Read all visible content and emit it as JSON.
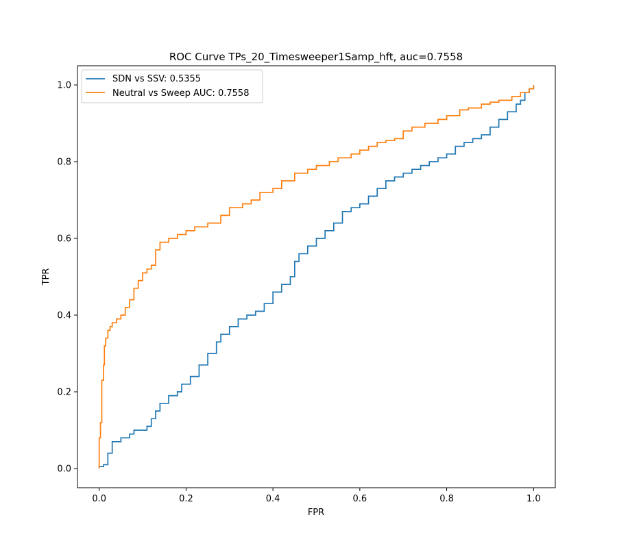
{
  "chart_data": {
    "type": "line",
    "title": "ROC Curve TPs_20_Timesweeper1Samp_hft, auc=0.7558",
    "xlabel": "FPR",
    "ylabel": "TPR",
    "xlim": [
      -0.05,
      1.05
    ],
    "ylim": [
      -0.05,
      1.05
    ],
    "xticks": [
      0.0,
      0.2,
      0.4,
      0.6,
      0.8,
      1.0
    ],
    "yticks": [
      0.0,
      0.2,
      0.4,
      0.6,
      0.8,
      1.0
    ],
    "x_tick_labels": [
      "0.0",
      "0.2",
      "0.4",
      "0.6",
      "0.8",
      "1.0"
    ],
    "y_tick_labels": [
      "0.0",
      "0.2",
      "0.4",
      "0.6",
      "0.8",
      "1.0"
    ],
    "grid": false,
    "legend_position": "upper-left",
    "series": [
      {
        "name": "SDN vs SSV: 0.5355",
        "color": "#1f77b4",
        "x": [
          0.0,
          0.0,
          0.01,
          0.02,
          0.03,
          0.05,
          0.07,
          0.08,
          0.1,
          0.11,
          0.12,
          0.13,
          0.14,
          0.16,
          0.18,
          0.19,
          0.21,
          0.23,
          0.25,
          0.27,
          0.28,
          0.3,
          0.32,
          0.34,
          0.36,
          0.38,
          0.4,
          0.42,
          0.44,
          0.45,
          0.46,
          0.48,
          0.5,
          0.52,
          0.54,
          0.56,
          0.58,
          0.6,
          0.62,
          0.64,
          0.66,
          0.68,
          0.7,
          0.72,
          0.74,
          0.76,
          0.78,
          0.8,
          0.82,
          0.84,
          0.86,
          0.88,
          0.9,
          0.92,
          0.94,
          0.96,
          0.97,
          0.98,
          0.99,
          1.0
        ],
        "y": [
          0.0,
          0.005,
          0.01,
          0.04,
          0.07,
          0.08,
          0.09,
          0.1,
          0.1,
          0.11,
          0.13,
          0.15,
          0.17,
          0.19,
          0.2,
          0.22,
          0.24,
          0.27,
          0.3,
          0.33,
          0.35,
          0.37,
          0.39,
          0.4,
          0.41,
          0.43,
          0.46,
          0.48,
          0.5,
          0.54,
          0.56,
          0.58,
          0.6,
          0.62,
          0.64,
          0.67,
          0.68,
          0.69,
          0.71,
          0.73,
          0.75,
          0.76,
          0.77,
          0.78,
          0.79,
          0.8,
          0.81,
          0.82,
          0.84,
          0.85,
          0.86,
          0.87,
          0.89,
          0.91,
          0.93,
          0.95,
          0.96,
          0.98,
          0.99,
          1.0
        ]
      },
      {
        "name": "Neutral vs Sweep AUC: 0.7558",
        "color": "#ff7f0e",
        "x": [
          0.0,
          0.0,
          0.003,
          0.006,
          0.01,
          0.012,
          0.015,
          0.02,
          0.025,
          0.03,
          0.04,
          0.05,
          0.06,
          0.07,
          0.08,
          0.09,
          0.1,
          0.11,
          0.12,
          0.13,
          0.14,
          0.16,
          0.18,
          0.2,
          0.22,
          0.25,
          0.28,
          0.3,
          0.33,
          0.35,
          0.37,
          0.4,
          0.42,
          0.45,
          0.48,
          0.5,
          0.53,
          0.55,
          0.58,
          0.6,
          0.62,
          0.64,
          0.66,
          0.68,
          0.7,
          0.72,
          0.75,
          0.78,
          0.8,
          0.83,
          0.85,
          0.88,
          0.9,
          0.92,
          0.95,
          0.97,
          0.99,
          1.0
        ],
        "y": [
          0.0,
          0.08,
          0.12,
          0.23,
          0.27,
          0.32,
          0.34,
          0.36,
          0.37,
          0.38,
          0.39,
          0.4,
          0.42,
          0.44,
          0.47,
          0.49,
          0.51,
          0.52,
          0.53,
          0.57,
          0.59,
          0.6,
          0.61,
          0.62,
          0.63,
          0.64,
          0.66,
          0.68,
          0.69,
          0.7,
          0.72,
          0.73,
          0.75,
          0.77,
          0.78,
          0.79,
          0.8,
          0.81,
          0.82,
          0.83,
          0.84,
          0.85,
          0.855,
          0.86,
          0.88,
          0.89,
          0.9,
          0.91,
          0.92,
          0.935,
          0.94,
          0.95,
          0.955,
          0.96,
          0.97,
          0.98,
          0.99,
          1.0
        ]
      }
    ]
  }
}
